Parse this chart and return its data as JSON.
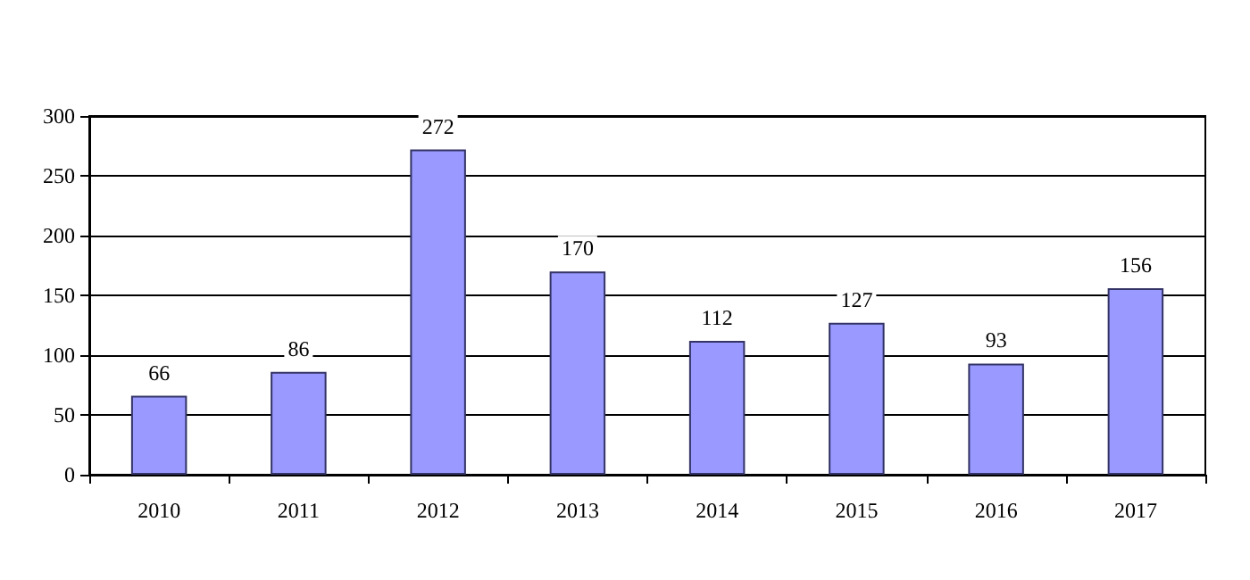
{
  "chart_data": {
    "type": "bar",
    "categories": [
      "2010",
      "2011",
      "2012",
      "2013",
      "2014",
      "2015",
      "2016",
      "2017"
    ],
    "values": [
      66,
      86,
      272,
      170,
      112,
      127,
      93,
      156
    ],
    "color": "#9999ff",
    "ylim": [
      0,
      300
    ],
    "yticks": [
      0,
      50,
      100,
      150,
      200,
      250,
      300
    ],
    "grid": "y",
    "data_labels": true
  }
}
